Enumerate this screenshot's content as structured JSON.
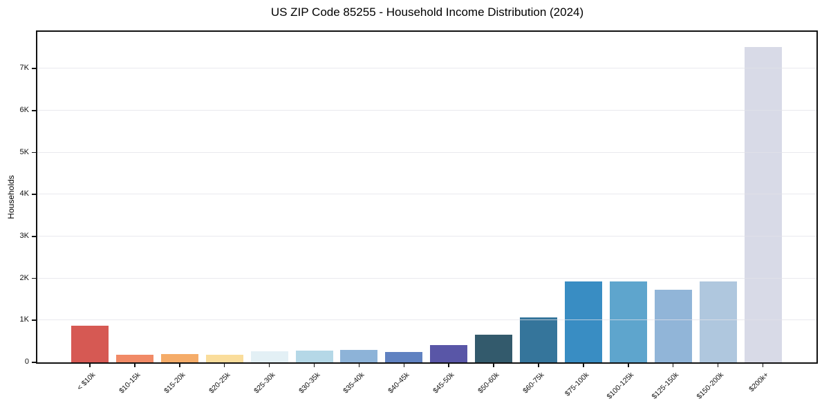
{
  "chart_data": {
    "type": "bar",
    "title": "US ZIP Code 85255 - Household Income Distribution (2024)",
    "xlabel": "",
    "ylabel": "Households",
    "categories": [
      "< $10k",
      "$10-15k",
      "$15-20k",
      "$20-25k",
      "$25-30k",
      "$30-35k",
      "$35-40k",
      "$40-45k",
      "$45-50k",
      "$50-60k",
      "$60-75k",
      "$75-100k",
      "$100-125k",
      "$125-150k",
      "$150-200k",
      "$200k+"
    ],
    "values": [
      880,
      180,
      200,
      190,
      270,
      285,
      300,
      250,
      415,
      665,
      1080,
      1935,
      1935,
      1730,
      1935,
      7520
    ],
    "bar_colors": [
      "#d65953",
      "#f18a66",
      "#f5ac69",
      "#fadd9b",
      "#e3f0f5",
      "#b5d8e7",
      "#8db3d8",
      "#6082c1",
      "#5956a7",
      "#335a6c",
      "#35759b",
      "#398dc3",
      "#5ea5cd",
      "#91b5d8",
      "#afc7de",
      "#d8dae7"
    ],
    "ylim": [
      0,
      7880
    ],
    "ytick_values": [
      0,
      1000,
      2000,
      3000,
      4000,
      5000,
      6000,
      7000
    ],
    "ytick_labels": [
      "0",
      "1K",
      "2K",
      "3K",
      "4K",
      "5K",
      "6K",
      "7K"
    ],
    "grid": "horizontal-light",
    "legend": "none",
    "background": "#ffffff",
    "spine_color": "#111111"
  }
}
